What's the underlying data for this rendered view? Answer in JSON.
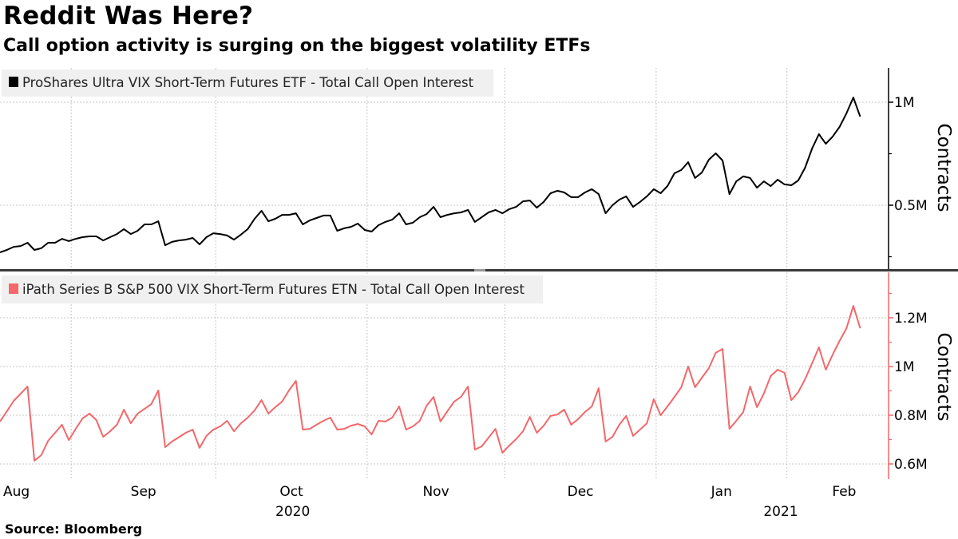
{
  "title": "Reddit Was Here?",
  "subtitle": "Call option activity is surging on the biggest volatility ETFs",
  "source": "Source: Bloomberg",
  "chart_data": [
    {
      "type": "line",
      "panel": "top",
      "legend_placement": "top-left",
      "series": [
        {
          "name": "ProShares Ultra VIX Short-Term Futures ETF - Total Call Open Interest",
          "color": "#000000",
          "values": [
            271000,
            283000,
            298000,
            302000,
            318000,
            283000,
            291000,
            318000,
            318000,
            337000,
            326000,
            337000,
            345000,
            349000,
            349000,
            329000,
            345000,
            360000,
            384000,
            360000,
            376000,
            407000,
            407000,
            422000,
            306000,
            322000,
            329000,
            333000,
            341000,
            310000,
            345000,
            364000,
            360000,
            353000,
            333000,
            357000,
            384000,
            434000,
            473000,
            422000,
            434000,
            453000,
            453000,
            461000,
            407000,
            426000,
            438000,
            450000,
            450000,
            376000,
            388000,
            395000,
            411000,
            380000,
            372000,
            403000,
            419000,
            430000,
            461000,
            407000,
            415000,
            442000,
            457000,
            492000,
            442000,
            453000,
            461000,
            465000,
            477000,
            419000,
            442000,
            465000,
            477000,
            461000,
            481000,
            492000,
            519000,
            523000,
            488000,
            516000,
            558000,
            570000,
            562000,
            539000,
            539000,
            562000,
            578000,
            554000,
            461000,
            500000,
            527000,
            543000,
            492000,
            516000,
            543000,
            578000,
            558000,
            593000,
            655000,
            671000,
            709000,
            632000,
            659000,
            721000,
            752000,
            717000,
            554000,
            616000,
            640000,
            632000,
            585000,
            616000,
            593000,
            624000,
            601000,
            597000,
            620000,
            682000,
            775000,
            845000,
            798000,
            833000,
            880000,
            946000,
            1023000,
            930000
          ]
        }
      ],
      "ylabel": "Contracts",
      "yaxis_side": "right",
      "ylim": [
        190000,
        1167000
      ],
      "yticks": [
        {
          "value": 1000000,
          "label": "1M"
        },
        {
          "value": 500000,
          "label": "0.5M"
        }
      ],
      "yminor_ticks": [
        750000,
        250000
      ],
      "grid": true
    },
    {
      "type": "line",
      "panel": "bottom",
      "legend_placement": "top-left",
      "series": [
        {
          "name": "iPath Series B S&P 500 VIX Short-Term Futures ETN - Total Call Open Interest",
          "color": "#f2686b",
          "values": [
            774000,
            816000,
            859000,
            889000,
            918000,
            613000,
            636000,
            695000,
            728000,
            761000,
            698000,
            744000,
            787000,
            807000,
            780000,
            711000,
            734000,
            761000,
            823000,
            767000,
            807000,
            826000,
            846000,
            902000,
            669000,
            692000,
            710000,
            728000,
            741000,
            666000,
            715000,
            741000,
            754000,
            777000,
            734000,
            767000,
            790000,
            820000,
            862000,
            807000,
            833000,
            856000,
            902000,
            941000,
            741000,
            744000,
            761000,
            777000,
            790000,
            741000,
            744000,
            757000,
            764000,
            754000,
            721000,
            777000,
            774000,
            790000,
            836000,
            741000,
            754000,
            777000,
            839000,
            875000,
            774000,
            816000,
            856000,
            875000,
            918000,
            659000,
            672000,
            708000,
            744000,
            646000,
            675000,
            702000,
            734000,
            793000,
            728000,
            757000,
            797000,
            803000,
            823000,
            761000,
            784000,
            813000,
            836000,
            911000,
            692000,
            711000,
            761000,
            797000,
            715000,
            741000,
            767000,
            866000,
            800000,
            836000,
            875000,
            915000,
            1000000,
            915000,
            954000,
            993000,
            1056000,
            1072000,
            744000,
            777000,
            813000,
            918000,
            833000,
            889000,
            961000,
            987000,
            974000,
            862000,
            895000,
            948000,
            1013000,
            1079000,
            987000,
            1049000,
            1105000,
            1157000,
            1249000,
            1157000
          ]
        }
      ],
      "ylabel": "Contracts",
      "yaxis_side": "right",
      "ylim": [
        538000,
        1390000
      ],
      "yticks": [
        {
          "value": 1200000,
          "label": "1.2M"
        },
        {
          "value": 1000000,
          "label": "1M"
        },
        {
          "value": 800000,
          "label": "0.8M"
        },
        {
          "value": 600000,
          "label": "0.6M"
        }
      ],
      "yminor_ticks": [
        1300000,
        1100000,
        900000,
        700000
      ],
      "grid": true
    }
  ],
  "x_dates": [
    "2020-08-18",
    "2020-08-19",
    "2020-08-20",
    "2020-08-21",
    "2020-08-24",
    "2020-08-25",
    "2020-08-26",
    "2020-08-27",
    "2020-08-28",
    "2020-08-31",
    "2020-09-01",
    "2020-09-02",
    "2020-09-03",
    "2020-09-04",
    "2020-09-08",
    "2020-09-09",
    "2020-09-10",
    "2020-09-11",
    "2020-09-14",
    "2020-09-15",
    "2020-09-16",
    "2020-09-17",
    "2020-09-18",
    "2020-09-21",
    "2020-09-22",
    "2020-09-23",
    "2020-09-24",
    "2020-09-25",
    "2020-09-28",
    "2020-09-29",
    "2020-09-30",
    "2020-10-01",
    "2020-10-02",
    "2020-10-05",
    "2020-10-06",
    "2020-10-07",
    "2020-10-08",
    "2020-10-09",
    "2020-10-12",
    "2020-10-13",
    "2020-10-14",
    "2020-10-15",
    "2020-10-16",
    "2020-10-19",
    "2020-10-20",
    "2020-10-21",
    "2020-10-22",
    "2020-10-23",
    "2020-10-26",
    "2020-10-27",
    "2020-10-28",
    "2020-10-29",
    "2020-10-30",
    "2020-11-02",
    "2020-11-03",
    "2020-11-04",
    "2020-11-05",
    "2020-11-06",
    "2020-11-09",
    "2020-11-10",
    "2020-11-11",
    "2020-11-12",
    "2020-11-13",
    "2020-11-16",
    "2020-11-17",
    "2020-11-18",
    "2020-11-19",
    "2020-11-20",
    "2020-11-23",
    "2020-11-24",
    "2020-11-25",
    "2020-11-27",
    "2020-11-30",
    "2020-12-01",
    "2020-12-02",
    "2020-12-03",
    "2020-12-04",
    "2020-12-07",
    "2020-12-08",
    "2020-12-09",
    "2020-12-10",
    "2020-12-11",
    "2020-12-14",
    "2020-12-15",
    "2020-12-16",
    "2020-12-17",
    "2020-12-18",
    "2020-12-21",
    "2020-12-22",
    "2020-12-23",
    "2020-12-24",
    "2020-12-28",
    "2020-12-29",
    "2020-12-30",
    "2020-12-31",
    "2021-01-04",
    "2021-01-05",
    "2021-01-06",
    "2021-01-07",
    "2021-01-08",
    "2021-01-11",
    "2021-01-12",
    "2021-01-13",
    "2021-01-14",
    "2021-01-15",
    "2021-01-19",
    "2021-01-20",
    "2021-01-21",
    "2021-01-22",
    "2021-01-25",
    "2021-01-26",
    "2021-01-27",
    "2021-01-28",
    "2021-01-29",
    "2021-02-01",
    "2021-02-02",
    "2021-02-03",
    "2021-02-04",
    "2021-02-05",
    "2021-02-08",
    "2021-02-09",
    "2021-02-10",
    "2021-02-11",
    "2021-02-12",
    "2021-02-16",
    "2021-02-17"
  ],
  "x_month_ticks": [
    {
      "label": "Aug",
      "start": "2020-08-01"
    },
    {
      "label": "Sep",
      "start": "2020-09-01"
    },
    {
      "label": "Oct",
      "start": "2020-10-01"
    },
    {
      "label": "Nov",
      "start": "2020-11-02"
    },
    {
      "label": "Dec",
      "start": "2020-12-01"
    },
    {
      "label": "Jan",
      "start": "2021-01-04"
    },
    {
      "label": "Feb",
      "start": "2021-02-01"
    }
  ],
  "x_year_labels": [
    {
      "label": "2020"
    },
    {
      "label": "2021"
    }
  ]
}
